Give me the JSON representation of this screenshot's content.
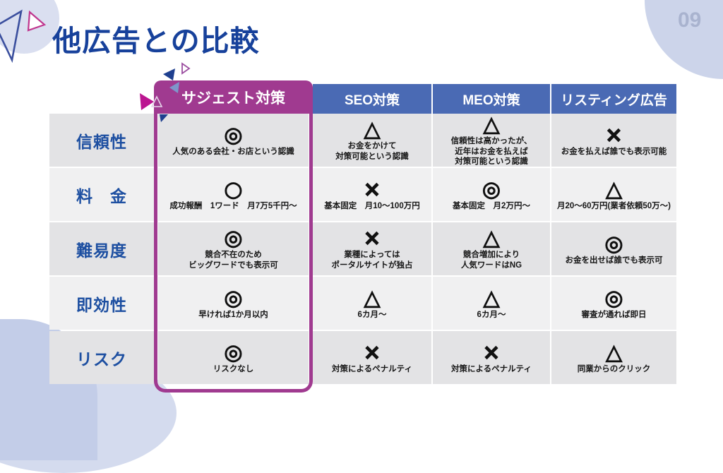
{
  "slide": {
    "title": "他広告との比較",
    "page_number": "09"
  },
  "table": {
    "columns": [
      {
        "label": "サジェスト対策",
        "highlighted": true
      },
      {
        "label": "SEO対策",
        "highlighted": false
      },
      {
        "label": "MEO対策",
        "highlighted": false
      },
      {
        "label": "リスティング広告",
        "highlighted": false
      }
    ],
    "rows": [
      {
        "label": "信頼性",
        "cells": [
          {
            "mark": "◎",
            "mark_name": "double-circle-mark",
            "lines": [
              "人気のある会社・お店という認識"
            ]
          },
          {
            "mark": "△",
            "mark_name": "triangle-mark",
            "lines": [
              "お金をかけて",
              "対策可能という認識"
            ]
          },
          {
            "mark": "△",
            "mark_name": "triangle-mark",
            "lines": [
              "信頼性は高かったが、",
              "近年はお金を払えば",
              "対策可能という認識"
            ]
          },
          {
            "mark": "×",
            "mark_name": "cross-mark",
            "lines": [
              "お金を払えば誰でも表示可能"
            ]
          }
        ]
      },
      {
        "label": "料　金",
        "cells": [
          {
            "mark": "○",
            "mark_name": "circle-mark",
            "lines": [
              "成功報酬　1ワード　月7万5千円～"
            ]
          },
          {
            "mark": "×",
            "mark_name": "cross-mark",
            "lines": [
              "基本固定　月10～100万円"
            ]
          },
          {
            "mark": "◎",
            "mark_name": "double-circle-mark",
            "lines": [
              "基本固定　月2万円～"
            ]
          },
          {
            "mark": "△",
            "mark_name": "triangle-mark",
            "lines": [
              "月20～60万円(業者依頼50万～)"
            ]
          }
        ]
      },
      {
        "label": "難易度",
        "cells": [
          {
            "mark": "◎",
            "mark_name": "double-circle-mark",
            "lines": [
              "競合不在のため",
              "ビッグワードでも表示可"
            ]
          },
          {
            "mark": "×",
            "mark_name": "cross-mark",
            "lines": [
              "業種によっては",
              "ポータルサイトが独占"
            ]
          },
          {
            "mark": "△",
            "mark_name": "triangle-mark",
            "lines": [
              "競合増加により",
              "人気ワードはNG"
            ]
          },
          {
            "mark": "◎",
            "mark_name": "double-circle-mark",
            "lines": [
              "お金を出せば誰でも表示可"
            ]
          }
        ]
      },
      {
        "label": "即効性",
        "cells": [
          {
            "mark": "◎",
            "mark_name": "double-circle-mark",
            "lines": [
              "早ければ1か月以内"
            ]
          },
          {
            "mark": "△",
            "mark_name": "triangle-mark",
            "lines": [
              "6カ月～"
            ]
          },
          {
            "mark": "△",
            "mark_name": "triangle-mark",
            "lines": [
              "6カ月～"
            ]
          },
          {
            "mark": "◎",
            "mark_name": "double-circle-mark",
            "lines": [
              "審査が通れば即日"
            ]
          }
        ]
      },
      {
        "label": "リスク",
        "cells": [
          {
            "mark": "◎",
            "mark_name": "double-circle-mark",
            "lines": [
              "リスクなし"
            ]
          },
          {
            "mark": "×",
            "mark_name": "cross-mark",
            "lines": [
              "対策によるペナルティ"
            ]
          },
          {
            "mark": "×",
            "mark_name": "cross-mark",
            "lines": [
              "対策によるペナルティ"
            ]
          },
          {
            "mark": "△",
            "mark_name": "triangle-mark",
            "lines": [
              "同業からのクリック"
            ]
          }
        ]
      }
    ]
  },
  "decorations": [
    "triangle-outline-blue-icon",
    "triangle-outline-magenta-icon",
    "triangle-solid-navy-icon",
    "triangle-solid-steel-icon",
    "triangle-solid-magenta-icon",
    "triangle-outline-white-icon",
    "circle-blob-top-left",
    "circle-blob-top-right",
    "blob-bottom-left"
  ],
  "colors": {
    "accent_magenta": "#a03a90",
    "header_blue": "#4a6ab4",
    "title_blue": "#17419b",
    "row_label_blue": "#1d4fa1",
    "stripe_dark": "#e3e3e5",
    "stripe_light": "#f0f0f1",
    "page_number_gray": "#a9b3cf",
    "blob_periwinkle": "#ccd4ea",
    "mark_black": "#111111"
  }
}
